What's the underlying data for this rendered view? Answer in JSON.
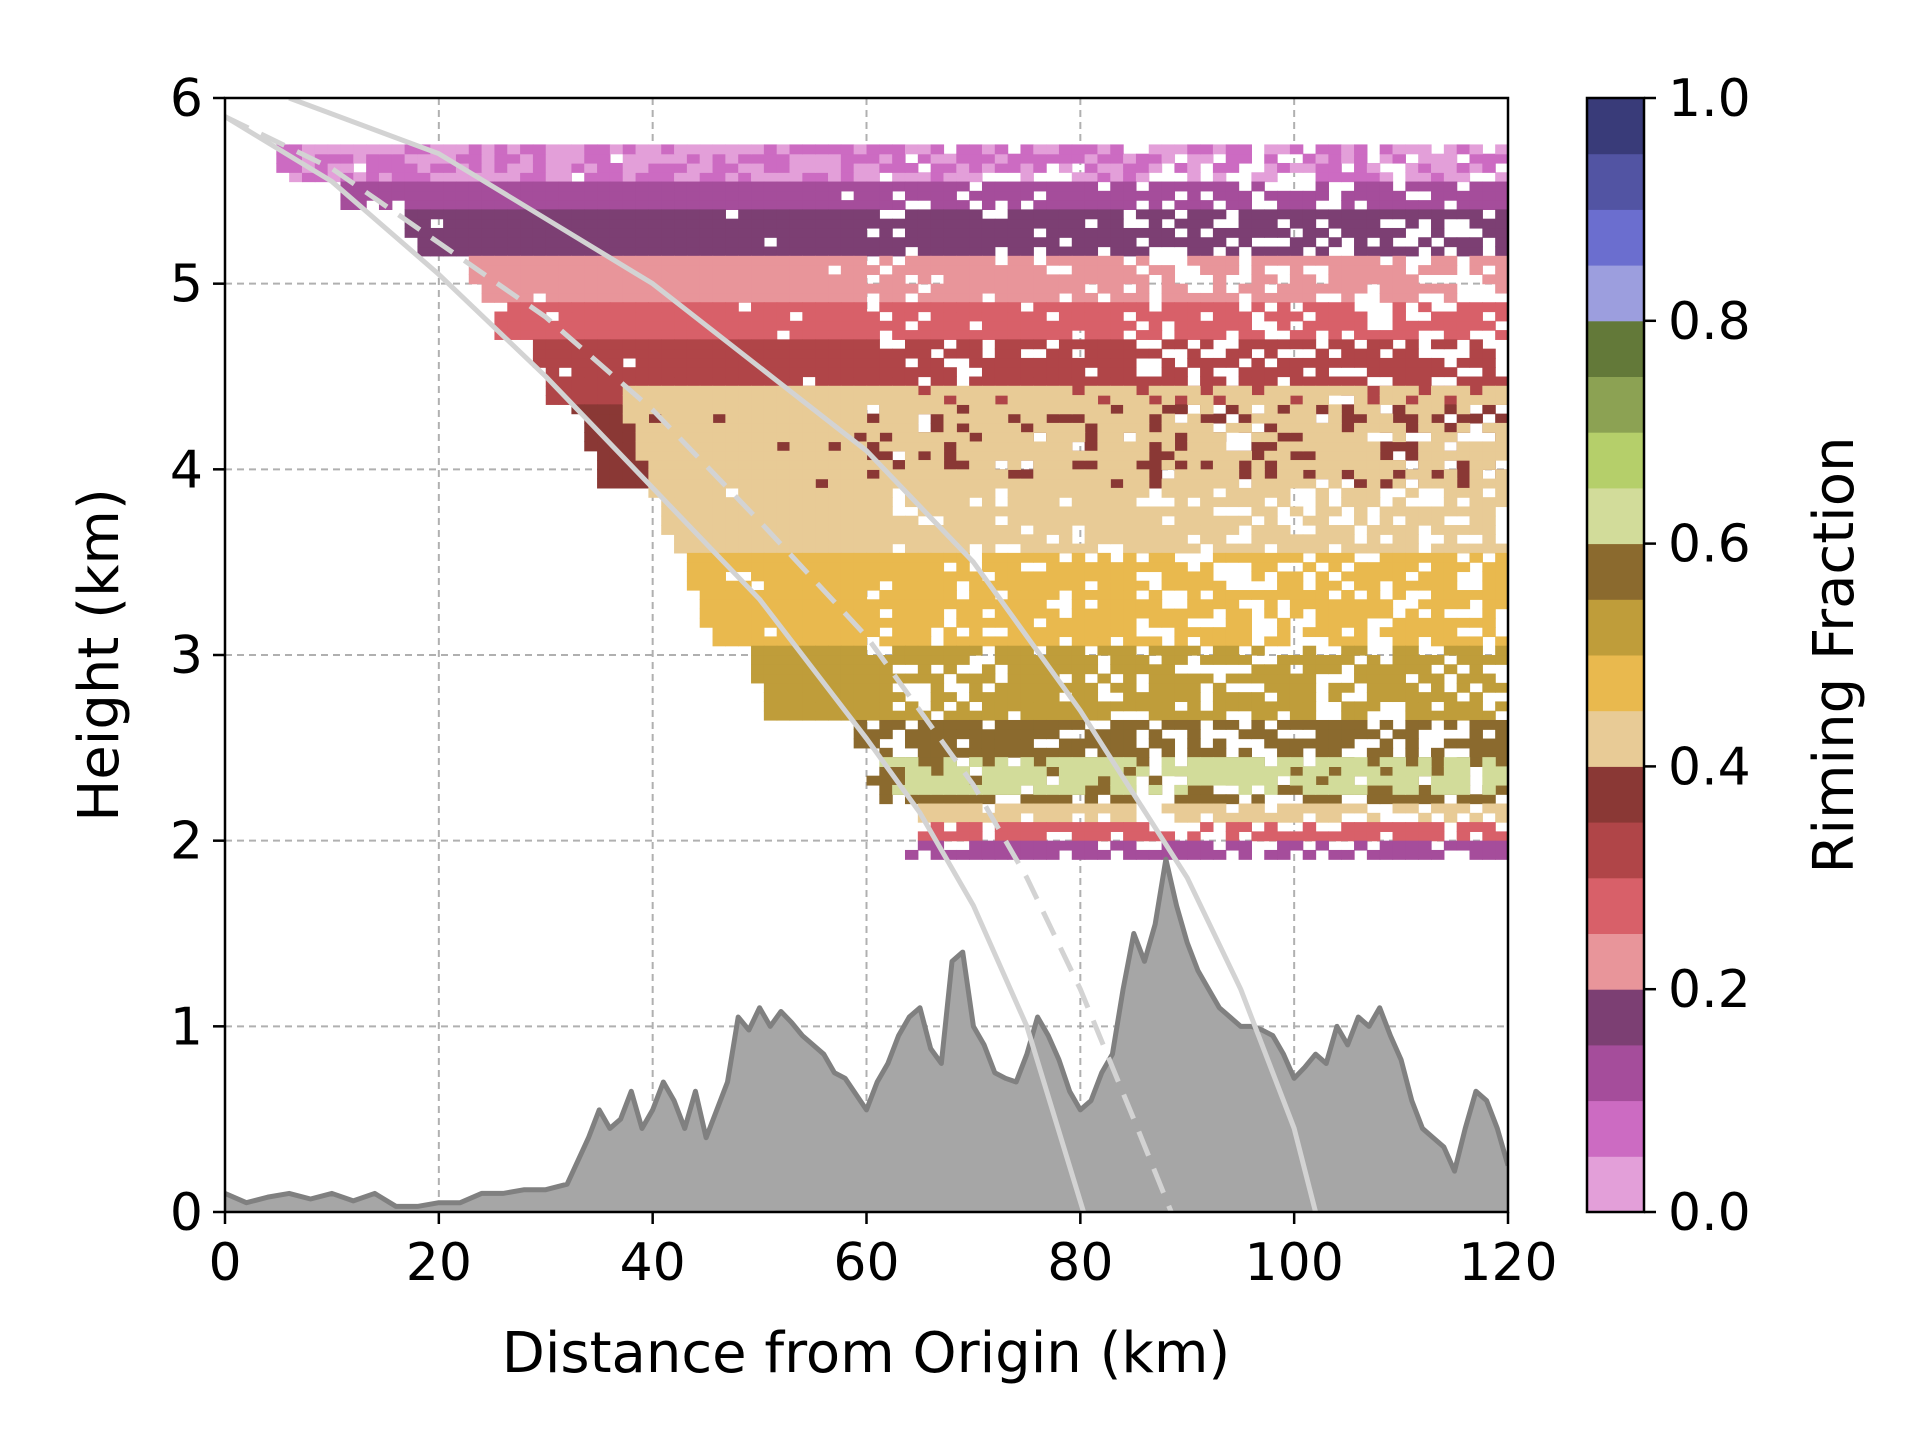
{
  "chart_data": {
    "type": "heatmap",
    "title": "",
    "xlabel": "Distance from Origin (km)",
    "ylabel": "Height (km)",
    "xlim": [
      0,
      120
    ],
    "ylim": [
      0,
      6
    ],
    "x_ticks": [
      "0",
      "20",
      "40",
      "60",
      "80",
      "100",
      "120"
    ],
    "y_ticks": [
      "0",
      "1",
      "2",
      "3",
      "4",
      "5",
      "6"
    ],
    "grid": true,
    "colorbar": {
      "label": "Riming Fraction",
      "range": [
        0.0,
        1.0
      ],
      "ticks": [
        "0.0",
        "0.2",
        "0.4",
        "0.6",
        "0.8",
        "1.0"
      ],
      "colors": [
        "#e39fd9",
        "#cc6bc2",
        "#a54d9b",
        "#7c3f73",
        "#e8959a",
        "#d86069",
        "#b04548",
        "#8a3835",
        "#e8cb96",
        "#e9b94e",
        "#bf9d3a",
        "#8b6a2e",
        "#d2dc9a",
        "#b5cf6a",
        "#8ca253",
        "#637939",
        "#9c9ede",
        "#6b6ecf",
        "#5254a3",
        "#393b79"
      ]
    },
    "bands": [
      {
        "riming": 0.05,
        "h_bottom": 5.55,
        "h_top": 5.75,
        "start": 4
      },
      {
        "riming": 0.12,
        "h_bottom": 5.4,
        "h_top": 5.55,
        "start": 10
      },
      {
        "riming": 0.17,
        "h_bottom": 5.15,
        "h_top": 5.4,
        "start": 16
      },
      {
        "riming": 0.23,
        "h_bottom": 4.9,
        "h_top": 5.15,
        "start": 22
      },
      {
        "riming": 0.27,
        "h_bottom": 4.7,
        "h_top": 4.9,
        "start": 24
      },
      {
        "riming": 0.32,
        "h_bottom": 4.35,
        "h_top": 4.7,
        "start": 28
      },
      {
        "riming": 0.37,
        "h_bottom": 3.9,
        "h_top": 4.35,
        "start": 32
      },
      {
        "riming": 0.42,
        "h_bottom": 3.55,
        "h_top": 4.45,
        "start": 36
      },
      {
        "riming": 0.47,
        "h_bottom": 3.05,
        "h_top": 3.55,
        "start": 42
      },
      {
        "riming": 0.52,
        "h_bottom": 2.65,
        "h_top": 3.05,
        "start": 48
      },
      {
        "riming": 0.57,
        "h_bottom": 2.2,
        "h_top": 2.65,
        "start": 58
      },
      {
        "riming": 0.62,
        "h_bottom": 2.25,
        "h_top": 2.45,
        "start": 61
      },
      {
        "riming": 0.42,
        "h_bottom": 2.1,
        "h_top": 2.2,
        "start": 64
      },
      {
        "riming": 0.27,
        "h_bottom": 2.0,
        "h_top": 2.1,
        "start": 64
      },
      {
        "riming": 0.12,
        "h_bottom": 1.9,
        "h_top": 2.0,
        "start": 63
      }
    ],
    "terrain": {
      "x": [
        0,
        2,
        4,
        6,
        8,
        10,
        12,
        14,
        16,
        18,
        20,
        22,
        24,
        26,
        28,
        30,
        32,
        34,
        35,
        36,
        37,
        38,
        39,
        40,
        41,
        42,
        43,
        44,
        45,
        46,
        47,
        48,
        49,
        50,
        51,
        52,
        53,
        54,
        55,
        56,
        57,
        58,
        60,
        61,
        62,
        63,
        64,
        65,
        66,
        67,
        68,
        69,
        70,
        71,
        72,
        73,
        74,
        75,
        76,
        77,
        78,
        79,
        80,
        81,
        82,
        83,
        84,
        85,
        86,
        87,
        88,
        89,
        90,
        91,
        92,
        93,
        94,
        95,
        96,
        97,
        98,
        99,
        100,
        101,
        102,
        103,
        104,
        105,
        106,
        107,
        108,
        109,
        110,
        111,
        112,
        113,
        114,
        115,
        116,
        117,
        118,
        119,
        120
      ],
      "y": [
        0.1,
        0.05,
        0.08,
        0.1,
        0.07,
        0.1,
        0.06,
        0.1,
        0.03,
        0.03,
        0.05,
        0.05,
        0.1,
        0.1,
        0.12,
        0.12,
        0.15,
        0.4,
        0.55,
        0.45,
        0.5,
        0.65,
        0.45,
        0.55,
        0.7,
        0.6,
        0.45,
        0.65,
        0.4,
        0.55,
        0.7,
        1.05,
        0.98,
        1.1,
        1.0,
        1.08,
        1.02,
        0.95,
        0.9,
        0.85,
        0.75,
        0.72,
        0.55,
        0.7,
        0.8,
        0.95,
        1.05,
        1.1,
        0.88,
        0.8,
        1.35,
        1.4,
        1.0,
        0.9,
        0.75,
        0.72,
        0.7,
        0.85,
        1.05,
        0.95,
        0.82,
        0.65,
        0.55,
        0.6,
        0.75,
        0.85,
        1.2,
        1.5,
        1.35,
        1.55,
        1.9,
        1.65,
        1.45,
        1.3,
        1.2,
        1.1,
        1.05,
        1.0,
        1.0,
        0.98,
        0.95,
        0.85,
        0.72,
        0.78,
        0.85,
        0.8,
        1.0,
        0.9,
        1.05,
        1.0,
        1.1,
        0.95,
        0.82,
        0.6,
        0.45,
        0.4,
        0.35,
        0.22,
        0.45,
        0.65,
        0.6,
        0.45,
        0.25
      ]
    },
    "beam_lines": [
      {
        "style": "solid",
        "x": [
          6,
          20,
          40,
          60,
          70,
          80,
          90,
          95,
          100,
          102
        ],
        "y": [
          6.0,
          5.7,
          5.0,
          4.1,
          3.5,
          2.7,
          1.8,
          1.2,
          0.45,
          0.0
        ]
      },
      {
        "style": "dashed",
        "x": [
          0,
          10,
          20,
          30,
          40,
          50,
          60,
          70,
          75,
          80,
          85,
          88.5
        ],
        "y": [
          5.9,
          5.62,
          5.22,
          4.82,
          4.32,
          3.72,
          3.1,
          2.3,
          1.8,
          1.2,
          0.5,
          0.0
        ]
      },
      {
        "style": "solid",
        "x": [
          0,
          10,
          20,
          30,
          40,
          50,
          60,
          65,
          70,
          75,
          80.3
        ],
        "y": [
          5.9,
          5.55,
          5.05,
          4.5,
          3.9,
          3.3,
          2.55,
          2.15,
          1.65,
          1.0,
          0.0
        ]
      }
    ]
  }
}
